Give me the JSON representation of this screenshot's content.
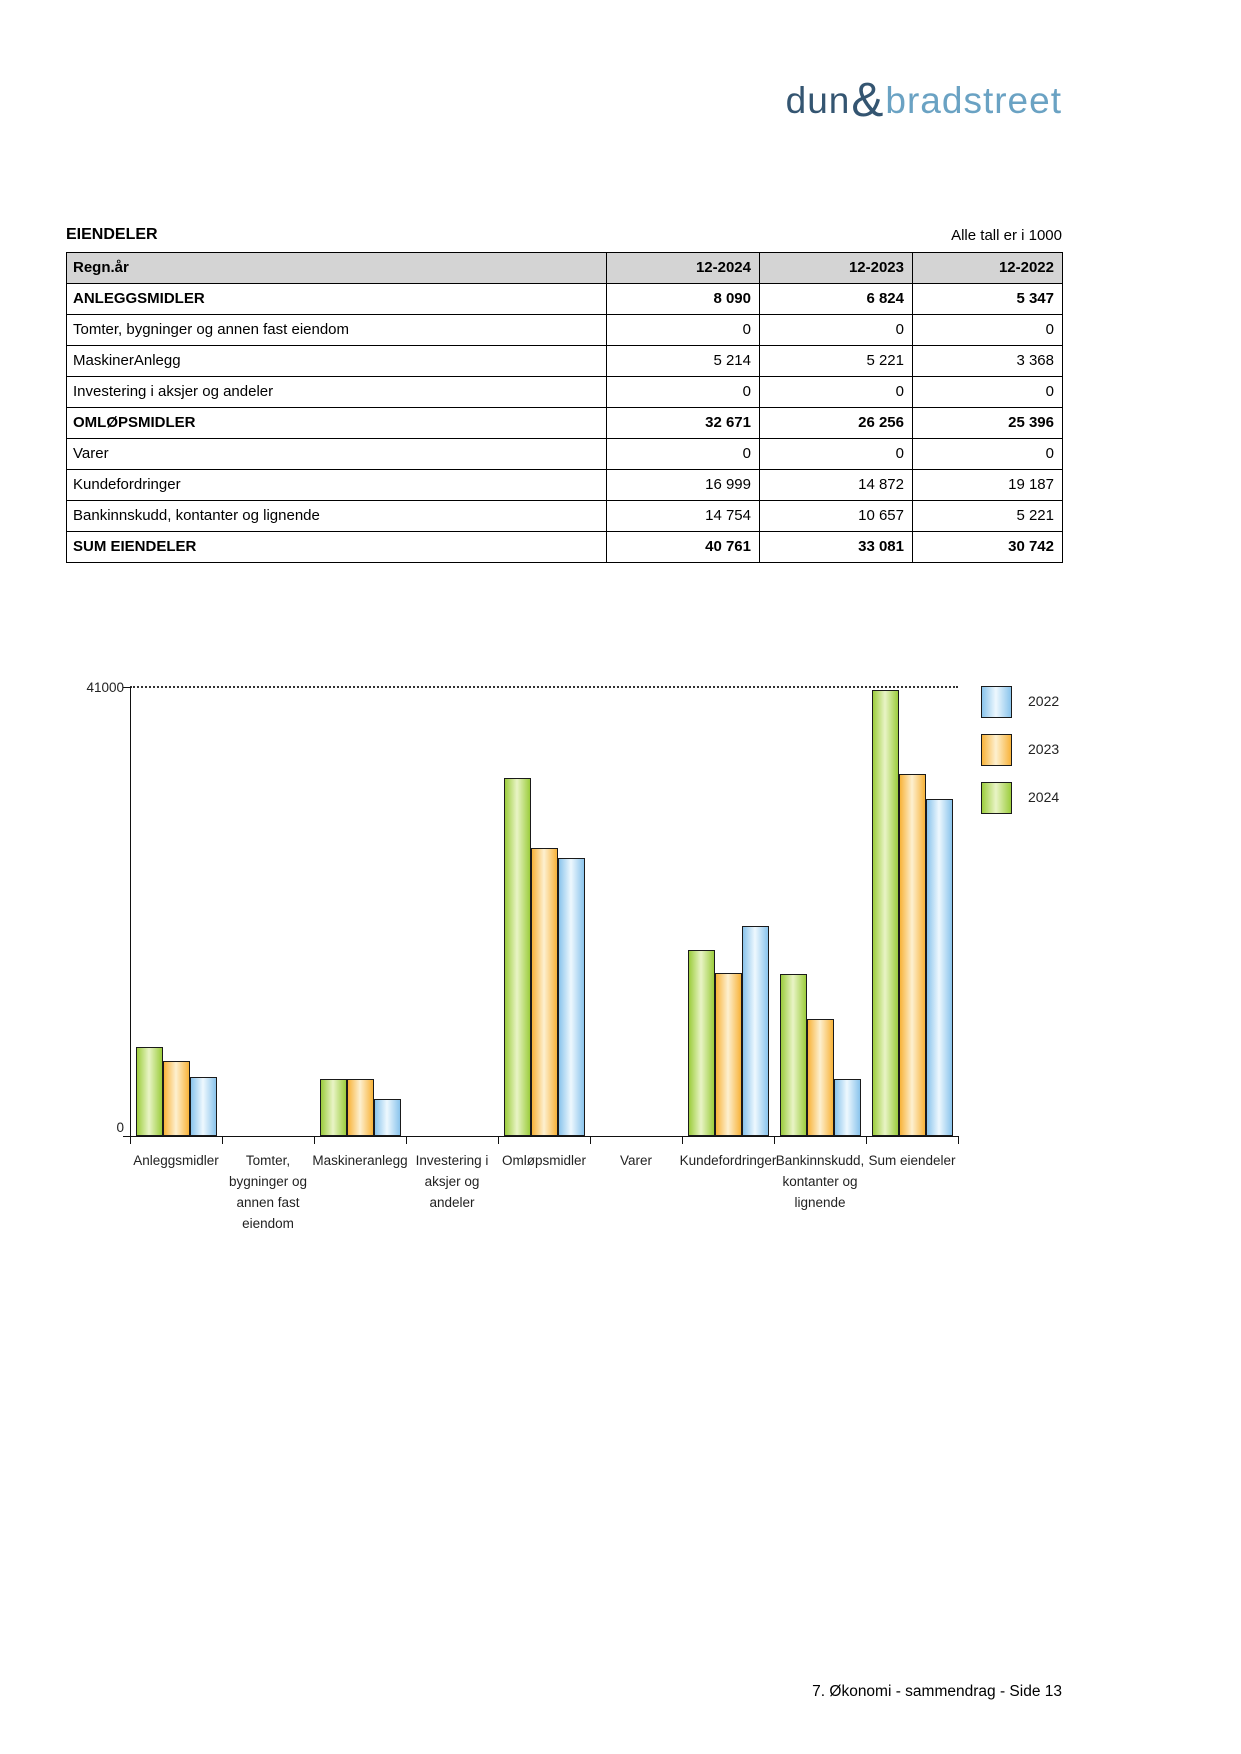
{
  "page": {
    "logo": {
      "part1": "dun",
      "amp": "&",
      "part2": "bradstreet",
      "color_dark": "#345571",
      "color_light": "#6aa2c3"
    },
    "section_title": "EIENDELER",
    "units_note": "Alle tall er i 1000",
    "footer": "7. Økonomi - sammendrag - Side 13"
  },
  "table": {
    "header": [
      "Regn.år",
      "12-2024",
      "12-2023",
      "12-2022"
    ],
    "header_bg": "#d4d4d4",
    "rows": [
      {
        "label": "ANLEGGSMIDLER",
        "values": [
          "8 090",
          "6 824",
          "5 347"
        ],
        "bold": true
      },
      {
        "label": "Tomter, bygninger og annen fast eiendom",
        "values": [
          "0",
          "0",
          "0"
        ],
        "bold": false
      },
      {
        "label": "MaskinerAnlegg",
        "values": [
          "5 214",
          "5 221",
          "3 368"
        ],
        "bold": false
      },
      {
        "label": "Investering i aksjer og andeler",
        "values": [
          "0",
          "0",
          "0"
        ],
        "bold": false
      },
      {
        "label": "OMLØPSMIDLER",
        "values": [
          "32 671",
          "26 256",
          "25 396"
        ],
        "bold": true
      },
      {
        "label": "Varer",
        "values": [
          "0",
          "0",
          "0"
        ],
        "bold": false
      },
      {
        "label": "Kundefordringer",
        "values": [
          "16 999",
          "14 872",
          "19 187"
        ],
        "bold": false
      },
      {
        "label": "Bankinnskudd, kontanter og lignende",
        "values": [
          "14 754",
          "10 657",
          "5 221"
        ],
        "bold": false
      },
      {
        "label": "SUM EIENDELER",
        "values": [
          "40 761",
          "33 081",
          "30 742"
        ],
        "bold": true
      }
    ]
  },
  "chart_data": {
    "type": "bar",
    "title": "",
    "xlabel": "",
    "ylabel": "",
    "ylim": [
      0,
      41000
    ],
    "y_axis_labels": [
      "41000",
      "0"
    ],
    "gridline": "dotted line at y = 41000",
    "legend_position": "top-right",
    "categories": [
      "Anleggsmidler",
      "Tomter, bygninger og annen fast eiendom",
      "Maskineranlegg",
      "Investering i aksjer og andeler",
      "Omløpsmidler",
      "Varer",
      "Kundefordringer",
      "Bankinnskudd, kontanter og lignende",
      "Sum eiendeler"
    ],
    "category_label_lines": [
      [
        "Anleggsmidler"
      ],
      [
        "Tomter,",
        "bygninger og",
        "annen fast",
        "eiendom"
      ],
      [
        "Maskineranlegg"
      ],
      [
        "Investering i",
        "aksjer og",
        "andeler"
      ],
      [
        "Omløpsmidler"
      ],
      [
        "Varer"
      ],
      [
        "Kundefordringer"
      ],
      [
        "Bankinnskudd,",
        "kontanter og",
        "lignende"
      ],
      [
        "Sum eiendeler"
      ]
    ],
    "series": [
      {
        "name": "2022",
        "edge_color": "#8ac4ec",
        "center_color": "#eef8fe",
        "values": [
          5347,
          0,
          3368,
          0,
          25396,
          0,
          19187,
          5221,
          30742
        ]
      },
      {
        "name": "2023",
        "edge_color": "#f8b33a",
        "center_color": "#fdf0d0",
        "values": [
          6824,
          0,
          5221,
          0,
          26256,
          0,
          14872,
          10657,
          33081
        ]
      },
      {
        "name": "2024",
        "edge_color": "#9ccd3d",
        "center_color": "#e9f4c6",
        "values": [
          8090,
          0,
          5214,
          0,
          32671,
          0,
          16999,
          14754,
          40761
        ]
      }
    ],
    "bar_draw_order": [
      "2024",
      "2023",
      "2022"
    ]
  }
}
